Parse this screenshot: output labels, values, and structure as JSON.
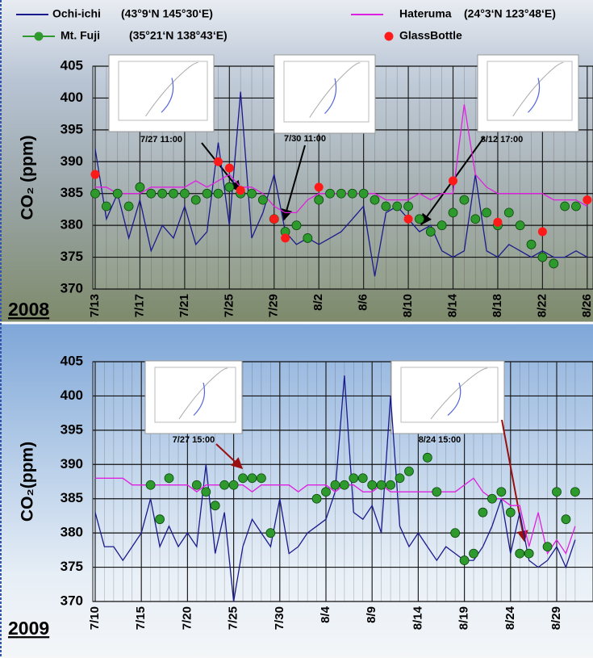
{
  "chart_data": [
    {
      "type": "line",
      "panel_label": "2008",
      "ylabel": "CO₂ (ppm)",
      "categories": [
        "7/13",
        null,
        null,
        null,
        "7/17",
        null,
        null,
        null,
        "7/21",
        null,
        null,
        null,
        "7/25",
        null,
        null,
        null,
        "7/29",
        null,
        null,
        null,
        "8/2",
        null,
        null,
        null,
        "8/6",
        null,
        null,
        null,
        "8/10",
        null,
        null,
        null,
        "8/14",
        null,
        null,
        null,
        "8/18",
        null,
        null,
        null,
        "8/22",
        null,
        null,
        null,
        "8/26"
      ],
      "ylim": [
        370,
        405
      ],
      "yticks": [
        370,
        375,
        380,
        385,
        390,
        395,
        400,
        405
      ],
      "grid": true,
      "annotations": [
        "7/27 11:00",
        "7/30 11:00",
        "8/12 17:00"
      ],
      "series": [
        {
          "name": "Ochi-ichi",
          "location": "(43°9‘N 145°30‘E)",
          "type": "line",
          "color": "#1a1a8c",
          "values": [
            392,
            381,
            385,
            378,
            384,
            376,
            380,
            378,
            383,
            377,
            379,
            393,
            380,
            401,
            378,
            382,
            388,
            379,
            377,
            378,
            377,
            378,
            379,
            381,
            383,
            372,
            382,
            383,
            381,
            379,
            380,
            376,
            375,
            376,
            388,
            376,
            375,
            377,
            376,
            375,
            376,
            375,
            375,
            376,
            375
          ]
        },
        {
          "name": "Hateruma",
          "location": "(24°3‘N 123°48‘E)",
          "type": "line",
          "color": "#e020e0",
          "values": [
            386,
            386,
            385,
            385,
            385,
            386,
            386,
            386,
            386,
            387,
            386,
            387,
            388,
            386,
            386,
            385,
            383,
            382,
            382,
            384,
            385,
            385,
            385,
            385,
            385,
            385,
            384,
            384,
            384,
            385,
            384,
            385,
            385,
            399,
            388,
            386,
            385,
            385,
            385,
            385,
            385,
            384,
            384,
            384,
            383
          ]
        },
        {
          "name": "Mt. Fuji",
          "location": "(35°21‘N 138°43‘E)",
          "type": "scatter",
          "color": "#2e9a2e",
          "values": [
            385,
            383,
            385,
            383,
            386,
            385,
            385,
            385,
            385,
            384,
            385,
            385,
            386,
            385,
            385,
            384,
            381,
            379,
            380,
            378,
            384,
            385,
            385,
            385,
            385,
            384,
            383,
            383,
            383,
            381,
            379,
            380,
            382,
            384,
            381,
            382,
            380,
            382,
            380,
            377,
            375,
            374,
            383,
            383,
            null
          ]
        },
        {
          "name": "GlassBottle",
          "type": "scatter",
          "color": "#ff1a1a",
          "values": [
            388,
            null,
            null,
            null,
            null,
            null,
            null,
            null,
            null,
            null,
            null,
            390,
            389,
            385.5,
            null,
            null,
            381,
            378,
            null,
            null,
            386,
            null,
            null,
            null,
            null,
            null,
            null,
            null,
            381,
            null,
            null,
            null,
            387,
            null,
            null,
            null,
            380.5,
            null,
            null,
            null,
            379,
            null,
            null,
            null,
            384
          ]
        }
      ]
    },
    {
      "type": "line",
      "panel_label": "2009",
      "ylabel": "CO₂(ppm)",
      "categories": [
        "7/10",
        null,
        null,
        null,
        null,
        "7/15",
        null,
        null,
        null,
        null,
        "7/20",
        null,
        null,
        null,
        null,
        "7/25",
        null,
        null,
        null,
        null,
        "7/30",
        null,
        null,
        null,
        null,
        "8/4",
        null,
        null,
        null,
        null,
        "8/9",
        null,
        null,
        null,
        null,
        "8/14",
        null,
        null,
        null,
        null,
        "8/19",
        null,
        null,
        null,
        null,
        "8/24",
        null,
        null,
        null,
        null,
        "8/29",
        null,
        null
      ],
      "ylim": [
        370,
        405
      ],
      "yticks": [
        370,
        375,
        380,
        385,
        390,
        395,
        400,
        405
      ],
      "grid": true,
      "annotations": [
        "7/27 15:00",
        "8/24 15:00"
      ],
      "series": [
        {
          "type": "line",
          "color": "#1a1a8c",
          "values": [
            383,
            378,
            378,
            376,
            378,
            380,
            385,
            378,
            381,
            378,
            380,
            378,
            390,
            377,
            383,
            370,
            378,
            382,
            380,
            378,
            385,
            377,
            378,
            380,
            381,
            382,
            386,
            403,
            383,
            382,
            384,
            380,
            400,
            381,
            378,
            380,
            378,
            376,
            378,
            377,
            376,
            376,
            378,
            381,
            385,
            377,
            383,
            376,
            375,
            376,
            378,
            375,
            379
          ]
        },
        {
          "type": "line",
          "color": "#e020e0",
          "values": [
            388,
            388,
            388,
            388,
            387,
            387,
            387,
            387,
            387,
            387,
            387,
            386,
            387,
            387,
            387,
            387,
            387,
            386,
            387,
            387,
            387,
            387,
            386,
            387,
            387,
            387,
            386,
            387,
            387,
            386,
            386,
            387,
            386,
            386,
            386,
            386,
            386,
            386,
            386,
            386,
            387,
            388,
            386,
            385,
            385,
            384,
            384,
            378,
            383,
            377,
            379,
            377,
            381
          ]
        },
        {
          "type": "scatter",
          "color": "#2e9a2e",
          "values": [
            null,
            null,
            null,
            null,
            null,
            null,
            387,
            382,
            388,
            null,
            null,
            387,
            386,
            384,
            387,
            387,
            388,
            388,
            388,
            380,
            null,
            null,
            null,
            null,
            385,
            386,
            387,
            387,
            388,
            388,
            387,
            387,
            387,
            388,
            389,
            null,
            391,
            386,
            null,
            380,
            376,
            377,
            383,
            385,
            386,
            383,
            377,
            377,
            null,
            378,
            386,
            382,
            386
          ]
        }
      ]
    }
  ]
}
